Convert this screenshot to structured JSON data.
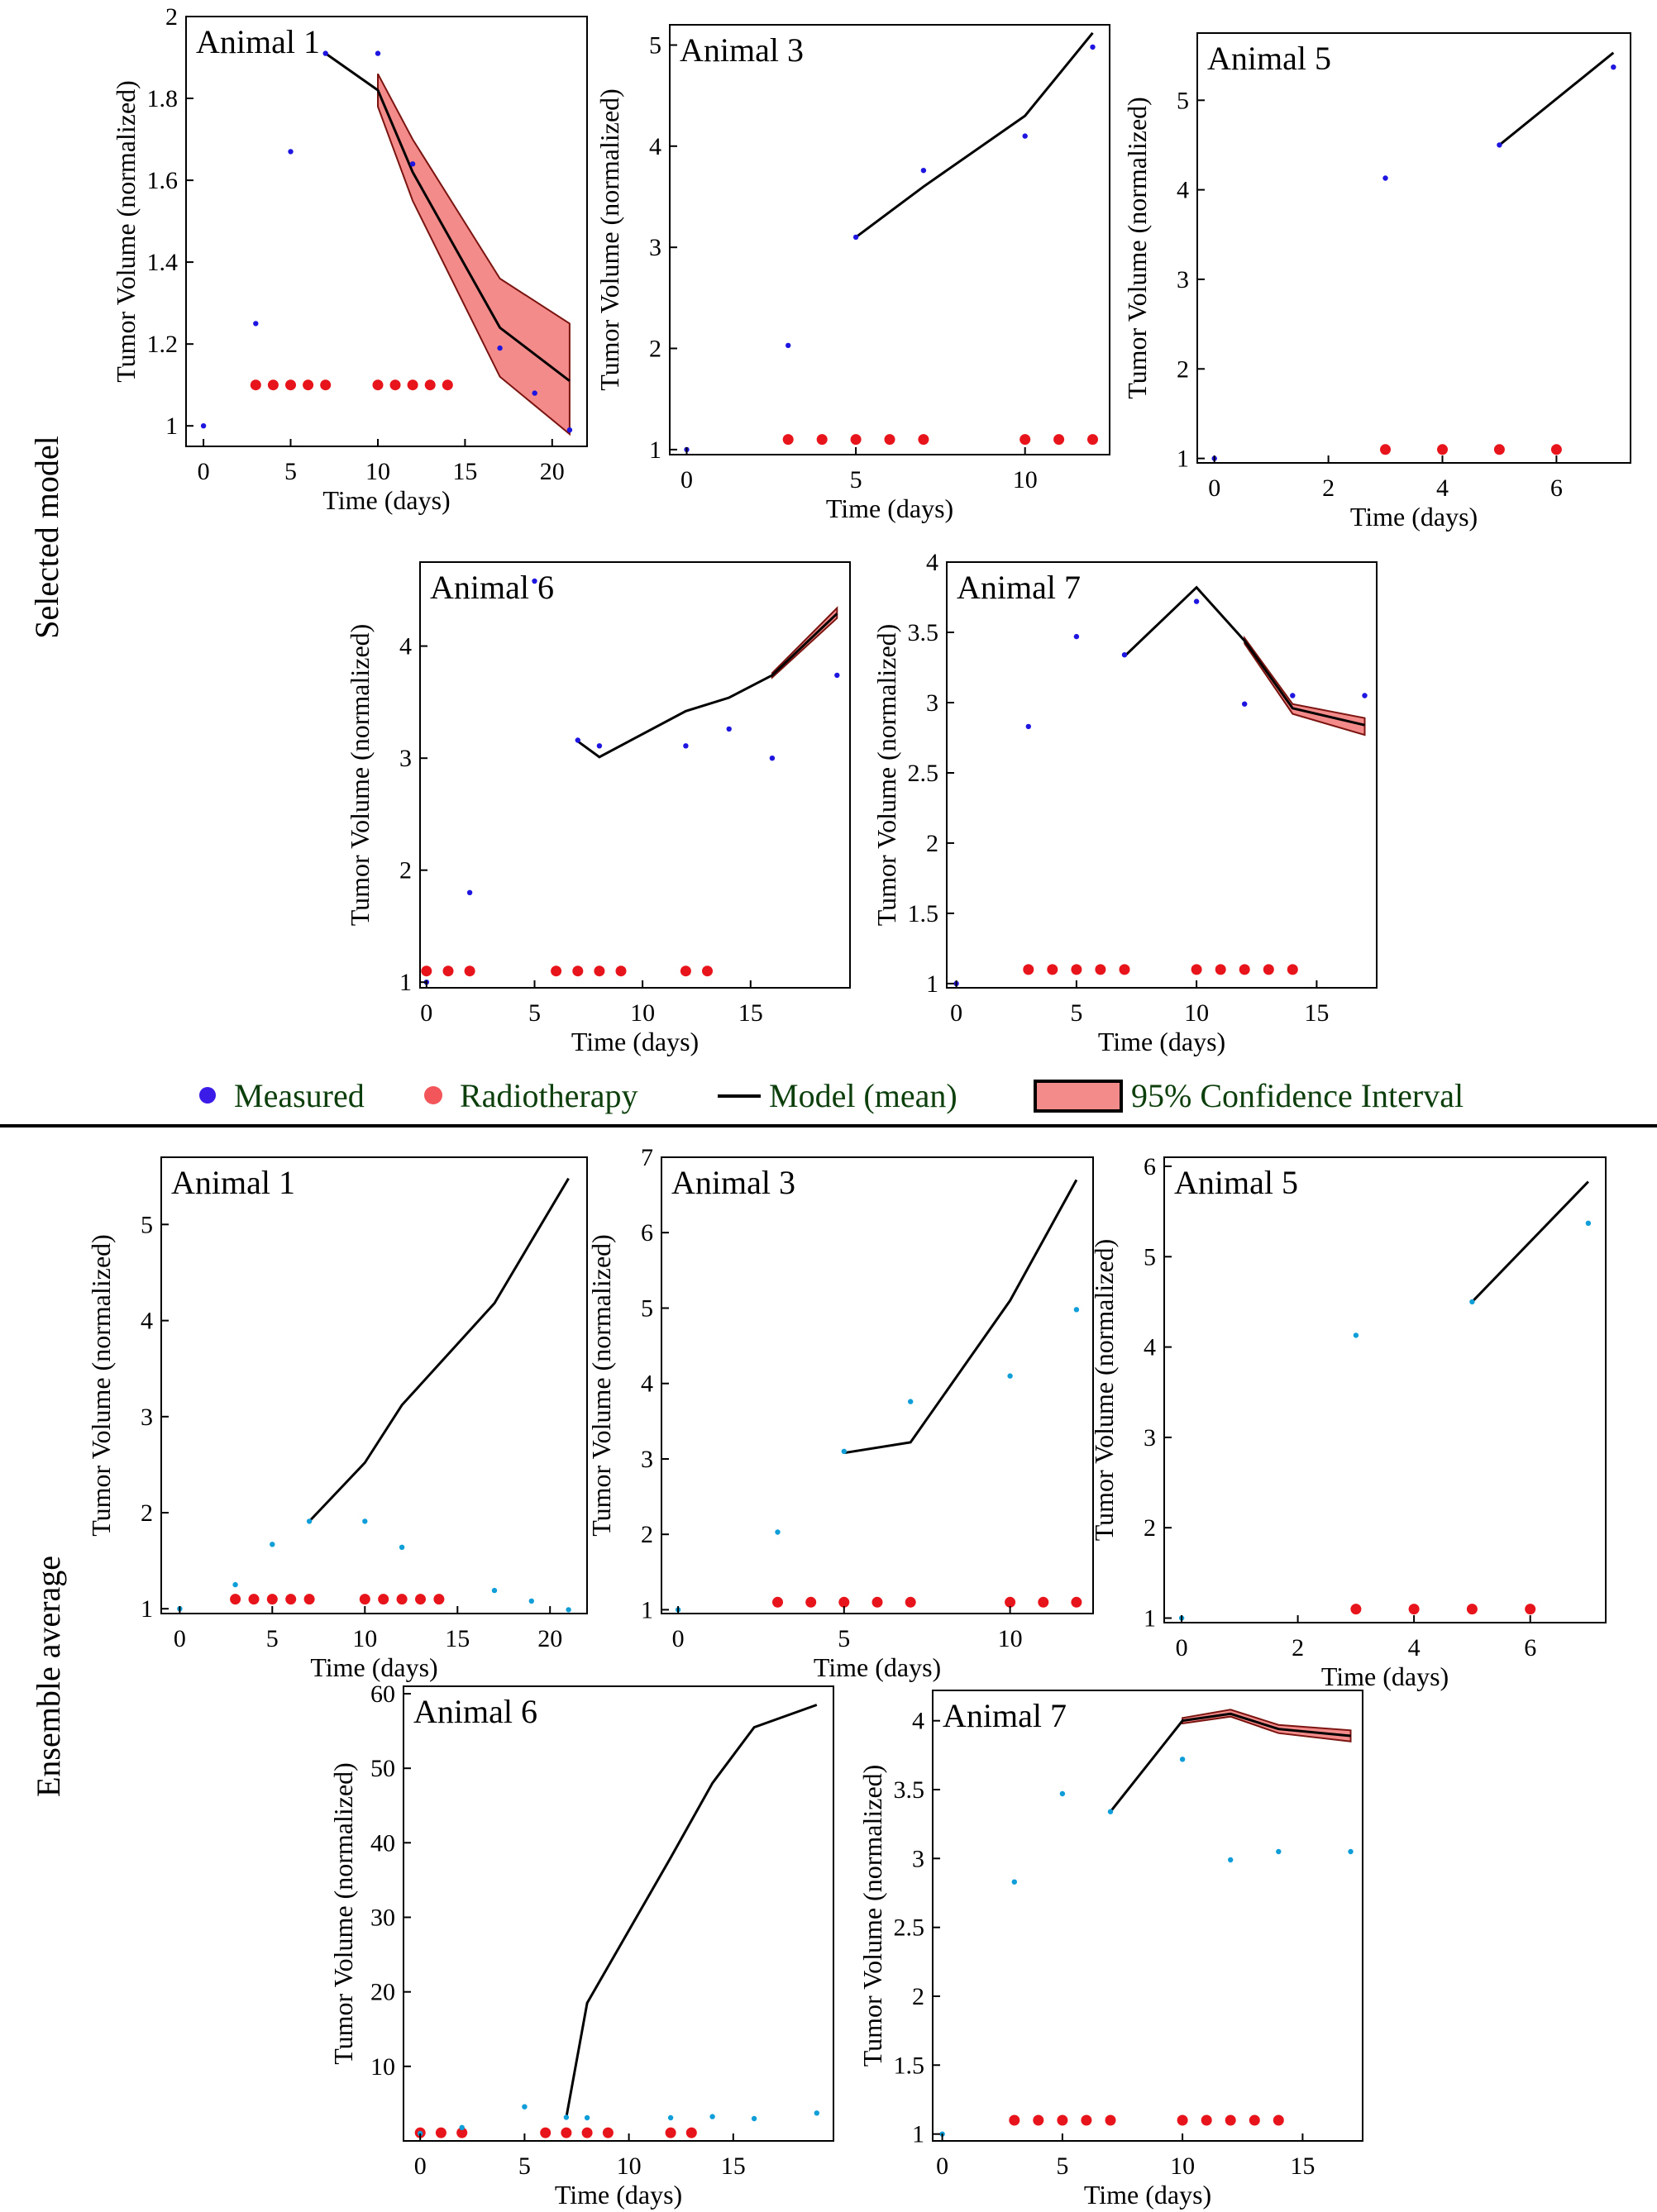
{
  "colors": {
    "measured_top": "#1e16e0",
    "measured_bottom": "#0f9ed8",
    "radiotherapy": "#e8141b",
    "model": "#000000",
    "ci_fill": "#f48b8b",
    "ci_edge": "#7a1410",
    "legend_text": "#0c3f0c"
  },
  "section_labels": {
    "top": "Selected model",
    "bottom": "Ensemble average"
  },
  "legend": {
    "measured": "Measured",
    "radiotherapy": "Radiotherapy",
    "model": "Model (mean)",
    "ci": "95% Confidence Interval"
  },
  "chart_data": [
    {
      "id": "sel-a1",
      "type": "line",
      "title": "Animal 1",
      "xlabel": "Time (days)",
      "ylabel": "Tumor Volume (normalized)",
      "xlim": [
        -1,
        22
      ],
      "ylim": [
        0.95,
        2.0
      ],
      "xticks": [
        0,
        5,
        10,
        15,
        20
      ],
      "yticks": [
        1,
        1.2,
        1.4,
        1.6,
        1.8,
        2
      ],
      "yticklabels": [
        "1",
        "1.2",
        "1.4",
        "1.6",
        "1.8",
        "2"
      ],
      "measured": {
        "x": [
          0,
          3,
          5,
          7,
          10,
          12,
          17,
          19,
          21
        ],
        "y": [
          1.0,
          1.25,
          1.67,
          1.91,
          1.91,
          1.64,
          1.19,
          1.08,
          0.99
        ]
      },
      "radiotherapy": {
        "x": [
          3,
          4,
          5,
          6,
          7,
          10,
          11,
          12,
          13,
          14
        ],
        "y": 1.1
      },
      "model": {
        "x": [
          7,
          10,
          12,
          17,
          21
        ],
        "y": [
          1.91,
          1.82,
          1.62,
          1.24,
          1.11
        ]
      },
      "ci": {
        "x": [
          10,
          12,
          17,
          21
        ],
        "lower": [
          1.78,
          1.55,
          1.12,
          0.98
        ],
        "upper": [
          1.86,
          1.7,
          1.36,
          1.25
        ]
      }
    },
    {
      "id": "sel-a3",
      "type": "line",
      "title": "Animal 3",
      "xlabel": "Time (days)",
      "ylabel": "Tumor Volume (normalized)",
      "xlim": [
        -0.5,
        12.5
      ],
      "ylim": [
        0.95,
        5.2
      ],
      "xticks": [
        0,
        5,
        10
      ],
      "yticks": [
        1,
        2,
        3,
        4,
        5
      ],
      "yticklabels": [
        "1",
        "2",
        "3",
        "4",
        "5"
      ],
      "measured": {
        "x": [
          0,
          3,
          5,
          7,
          10,
          12
        ],
        "y": [
          1.0,
          2.03,
          3.1,
          3.76,
          4.1,
          4.98
        ]
      },
      "radiotherapy": {
        "x": [
          3,
          4,
          5,
          6,
          7,
          10,
          11,
          12
        ],
        "y": 1.1
      },
      "model": {
        "x": [
          5,
          7,
          10,
          12
        ],
        "y": [
          3.1,
          3.6,
          4.3,
          5.12
        ]
      }
    },
    {
      "id": "sel-a5",
      "type": "line",
      "title": "Animal 5",
      "xlabel": "Time (days)",
      "ylabel": "Tumor Volume (normalized)",
      "xlim": [
        -0.3,
        7.3
      ],
      "ylim": [
        0.95,
        5.75
      ],
      "xticks": [
        0,
        2,
        4,
        6
      ],
      "yticks": [
        1,
        2,
        3,
        4,
        5
      ],
      "yticklabels": [
        "1",
        "2",
        "3",
        "4",
        "5"
      ],
      "measured": {
        "x": [
          0,
          3,
          5,
          7
        ],
        "y": [
          1.0,
          4.13,
          4.5,
          5.37
        ]
      },
      "radiotherapy": {
        "x": [
          3,
          4,
          5,
          6
        ],
        "y": 1.1
      },
      "model": {
        "x": [
          5,
          7
        ],
        "y": [
          4.5,
          5.53
        ]
      }
    },
    {
      "id": "sel-a6",
      "type": "line",
      "title": "Animal 6",
      "xlabel": "Time (days)",
      "ylabel": "Tumor Volume (normalized)",
      "xlim": [
        -0.3,
        19.6
      ],
      "ylim": [
        0.95,
        4.75
      ],
      "xticks": [
        0,
        5,
        10,
        15
      ],
      "yticks": [
        1,
        2,
        3,
        4
      ],
      "yticklabels": [
        "1",
        "2",
        "3",
        "4"
      ],
      "measured": {
        "x": [
          0,
          2,
          5,
          7,
          8,
          12,
          14,
          16,
          19
        ],
        "y": [
          1.0,
          1.8,
          4.58,
          3.16,
          3.11,
          3.11,
          3.26,
          3.0,
          3.74
        ]
      },
      "radiotherapy": {
        "x": [
          0,
          1,
          2,
          6,
          7,
          8,
          9,
          12,
          13
        ],
        "y": 1.1
      },
      "model": {
        "x": [
          7,
          8,
          12,
          14,
          16,
          19
        ],
        "y": [
          3.15,
          3.01,
          3.42,
          3.54,
          3.74,
          4.29
        ]
      },
      "ci": {
        "x": [
          16,
          19
        ],
        "lower": [
          3.72,
          4.25
        ],
        "upper": [
          3.76,
          4.34
        ]
      }
    },
    {
      "id": "sel-a7",
      "type": "line",
      "title": "Animal 7",
      "xlabel": "Time (days)",
      "ylabel": "Tumor Volume (normalized)",
      "xlim": [
        -0.4,
        17.5
      ],
      "ylim": [
        0.97,
        4.0
      ],
      "xticks": [
        0,
        5,
        10,
        15
      ],
      "yticks": [
        1,
        1.5,
        2,
        2.5,
        3,
        3.5,
        4
      ],
      "yticklabels": [
        "1",
        "1.5",
        "2",
        "2.5",
        "3",
        "3.5",
        "4"
      ],
      "measured": {
        "x": [
          0,
          3,
          5,
          7,
          10,
          12,
          14,
          17
        ],
        "y": [
          1.0,
          2.83,
          3.47,
          3.34,
          3.72,
          2.99,
          3.05,
          3.05
        ]
      },
      "radiotherapy": {
        "x": [
          3,
          4,
          5,
          6,
          7,
          10,
          11,
          12,
          13,
          14
        ],
        "y": 1.1
      },
      "model": {
        "x": [
          7,
          10,
          12,
          14,
          17
        ],
        "y": [
          3.33,
          3.82,
          3.44,
          2.96,
          2.84
        ]
      },
      "ci": {
        "x": [
          12,
          14,
          17
        ],
        "lower": [
          3.42,
          2.92,
          2.77
        ],
        "upper": [
          3.46,
          2.99,
          2.89
        ]
      }
    },
    {
      "id": "ens-a1",
      "type": "line",
      "title": "Animal 1",
      "xlabel": "Time (days)",
      "ylabel": "Tumor Volume (normalized)",
      "xlim": [
        -1,
        22
      ],
      "ylim": [
        0.95,
        5.7
      ],
      "xticks": [
        0,
        5,
        10,
        15,
        20
      ],
      "yticks": [
        1,
        2,
        3,
        4,
        5
      ],
      "yticklabels": [
        "1",
        "2",
        "3",
        "4",
        "5"
      ],
      "measured": {
        "x": [
          0,
          3,
          5,
          7,
          10,
          12,
          17,
          19,
          21
        ],
        "y": [
          1.0,
          1.25,
          1.67,
          1.91,
          1.91,
          1.64,
          1.19,
          1.08,
          0.99
        ]
      },
      "radiotherapy": {
        "x": [
          3,
          4,
          5,
          6,
          7,
          10,
          11,
          12,
          13,
          14
        ],
        "y": 1.1
      },
      "model": {
        "x": [
          7,
          10,
          12,
          17,
          21
        ],
        "y": [
          1.91,
          2.52,
          3.12,
          4.18,
          5.48
        ]
      }
    },
    {
      "id": "ens-a3",
      "type": "line",
      "title": "Animal 3",
      "xlabel": "Time (days)",
      "ylabel": "Tumor Volume (normalized)",
      "xlim": [
        -0.5,
        12.5
      ],
      "ylim": [
        0.95,
        7.0
      ],
      "xticks": [
        0,
        5,
        10
      ],
      "yticks": [
        1,
        2,
        3,
        4,
        5,
        6,
        7
      ],
      "yticklabels": [
        "1",
        "2",
        "3",
        "4",
        "5",
        "6",
        "7"
      ],
      "measured": {
        "x": [
          0,
          3,
          5,
          7,
          10,
          12
        ],
        "y": [
          1.0,
          2.03,
          3.1,
          3.76,
          4.1,
          4.98
        ]
      },
      "radiotherapy": {
        "x": [
          3,
          4,
          5,
          6,
          7,
          10,
          11,
          12
        ],
        "y": 1.1
      },
      "model": {
        "x": [
          5,
          7,
          10,
          12
        ],
        "y": [
          3.08,
          3.22,
          5.1,
          6.7
        ]
      }
    },
    {
      "id": "ens-a5",
      "type": "line",
      "title": "Animal 5",
      "xlabel": "Time (days)",
      "ylabel": "Tumor Volume (normalized)",
      "xlim": [
        -0.3,
        7.3
      ],
      "ylim": [
        0.95,
        6.1
      ],
      "xticks": [
        0,
        2,
        4,
        6
      ],
      "yticks": [
        1,
        2,
        3,
        4,
        5,
        6
      ],
      "yticklabels": [
        "1",
        "2",
        "3",
        "4",
        "5",
        "6"
      ],
      "measured": {
        "x": [
          0,
          3,
          5,
          7
        ],
        "y": [
          1.0,
          4.13,
          4.5,
          5.37
        ]
      },
      "radiotherapy": {
        "x": [
          3,
          4,
          5,
          6
        ],
        "y": 1.1
      },
      "model": {
        "x": [
          5,
          7
        ],
        "y": [
          4.5,
          5.83
        ]
      }
    },
    {
      "id": "ens-a6",
      "type": "line",
      "title": "Animal 6",
      "xlabel": "Time (days)",
      "ylabel": "Tumor Volume (normalized)",
      "xlim": [
        -0.8,
        19.8
      ],
      "ylim": [
        0,
        61
      ],
      "xticks": [
        0,
        5,
        10,
        15
      ],
      "yticks": [
        10,
        20,
        30,
        40,
        50,
        60
      ],
      "yticklabels": [
        "10",
        "20",
        "30",
        "40",
        "50",
        "60"
      ],
      "measured": {
        "x": [
          0,
          2,
          5,
          7,
          8,
          12,
          14,
          16,
          19
        ],
        "y": [
          1.0,
          1.8,
          4.58,
          3.16,
          3.11,
          3.11,
          3.26,
          3.0,
          3.74
        ]
      },
      "radiotherapy": {
        "x": [
          0,
          1,
          2,
          6,
          7,
          8,
          9,
          12,
          13
        ],
        "y": 1.1
      },
      "model": {
        "x": [
          7,
          8,
          12,
          14,
          16,
          19
        ],
        "y": [
          3.16,
          18.5,
          38.0,
          48.0,
          55.5,
          58.5
        ]
      }
    },
    {
      "id": "ens-a7",
      "type": "line",
      "title": "Animal 7",
      "xlabel": "Time (days)",
      "ylabel": "Tumor Volume (normalized)",
      "xlim": [
        -0.4,
        17.5
      ],
      "ylim": [
        0.95,
        4.22
      ],
      "xticks": [
        0,
        5,
        10,
        15
      ],
      "yticks": [
        1,
        1.5,
        2,
        2.5,
        3,
        3.5,
        4
      ],
      "yticklabels": [
        "1",
        "1.5",
        "2",
        "2.5",
        "3",
        "3.5",
        "4"
      ],
      "measured": {
        "x": [
          0,
          3,
          5,
          7,
          10,
          12,
          14,
          17
        ],
        "y": [
          1.0,
          2.83,
          3.47,
          3.34,
          3.72,
          2.99,
          3.05,
          3.05
        ]
      },
      "radiotherapy": {
        "x": [
          3,
          4,
          5,
          6,
          7,
          10,
          11,
          12,
          13,
          14
        ],
        "y": 1.1
      },
      "model": {
        "x": [
          7,
          10,
          12,
          14,
          17
        ],
        "y": [
          3.34,
          4.0,
          4.05,
          3.94,
          3.89
        ]
      },
      "ci": {
        "x": [
          10,
          12,
          14,
          17
        ],
        "lower": [
          3.98,
          4.03,
          3.91,
          3.85
        ],
        "upper": [
          4.02,
          4.08,
          3.97,
          3.93
        ]
      }
    }
  ]
}
